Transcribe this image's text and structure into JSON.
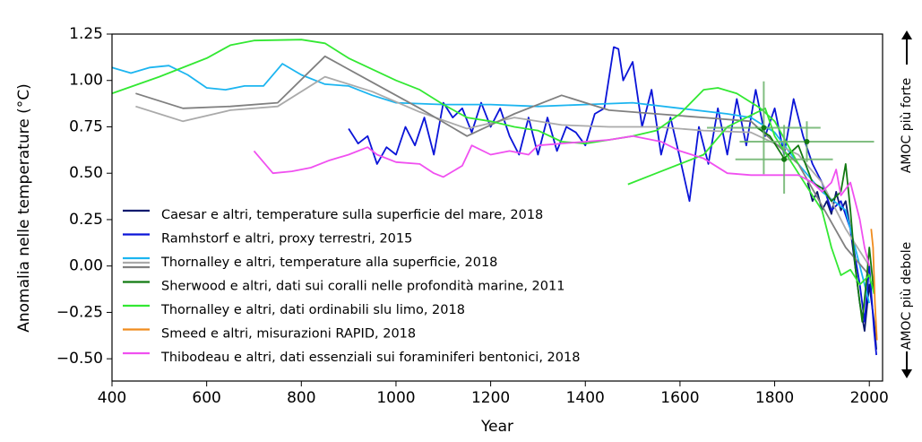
{
  "chart_data": {
    "type": "line",
    "xlabel": "Year",
    "ylabel": "Anomalia nelle temperature (°C)",
    "xlim": [
      400,
      2028
    ],
    "ylim": [
      -0.62,
      1.25
    ],
    "xticks": [
      400,
      600,
      800,
      1000,
      1200,
      1400,
      1600,
      1800,
      2000
    ],
    "yticks": [
      {
        "value": -0.5,
        "label": "−0.50"
      },
      {
        "value": -0.25,
        "label": "−0.25"
      },
      {
        "value": 0,
        "label": "0.00"
      },
      0.25,
      {
        "value": 0.5,
        "label": "0.50"
      },
      0.75,
      {
        "value": 1,
        "label": "1.00"
      },
      1.25
    ],
    "annotations": [
      "AMOC più forte",
      "AMOC più debole"
    ],
    "legend": "lower left",
    "series": [
      {
        "name": "Caesar e altri, temperature sulla superficie del mare, 2018",
        "color": "#0b1a6e",
        "x": [
          1870,
          1880,
          1890,
          1900,
          1910,
          1920,
          1930,
          1940,
          1950,
          1960,
          1970,
          1980,
          1990,
          2000,
          2010,
          2015
        ],
        "values": [
          0.45,
          0.35,
          0.4,
          0.3,
          0.35,
          0.28,
          0.4,
          0.3,
          0.35,
          0.2,
          0.0,
          -0.2,
          -0.35,
          -0.1,
          -0.3,
          -0.45
        ]
      },
      {
        "name": "Ramhstorf e altri, proxy terrestri, 2015",
        "color": "#0a14d8",
        "x": [
          900,
          920,
          940,
          960,
          980,
          1000,
          1020,
          1040,
          1060,
          1080,
          1100,
          1120,
          1140,
          1160,
          1180,
          1200,
          1220,
          1240,
          1260,
          1280,
          1300,
          1320,
          1340,
          1360,
          1380,
          1400,
          1420,
          1440,
          1460,
          1470,
          1480,
          1500,
          1520,
          1540,
          1560,
          1580,
          1600,
          1620,
          1640,
          1660,
          1680,
          1700,
          1720,
          1740,
          1760,
          1780,
          1800,
          1820,
          1840,
          1860,
          1880,
          1900,
          1920,
          1940,
          1960,
          1980,
          1990,
          2000,
          2010,
          2015
        ],
        "values": [
          0.74,
          0.66,
          0.7,
          0.55,
          0.64,
          0.6,
          0.75,
          0.65,
          0.8,
          0.6,
          0.88,
          0.8,
          0.85,
          0.72,
          0.88,
          0.75,
          0.85,
          0.7,
          0.6,
          0.8,
          0.6,
          0.8,
          0.62,
          0.75,
          0.72,
          0.65,
          0.82,
          0.85,
          1.18,
          1.17,
          1.0,
          1.1,
          0.75,
          0.95,
          0.6,
          0.8,
          0.58,
          0.35,
          0.75,
          0.55,
          0.85,
          0.6,
          0.9,
          0.65,
          0.95,
          0.7,
          0.85,
          0.6,
          0.9,
          0.7,
          0.55,
          0.45,
          0.3,
          0.35,
          0.2,
          -0.1,
          -0.3,
          0.0,
          -0.35,
          -0.48
        ]
      },
      {
        "name": "Thornalley e altri, temperature alla superficie, 2018",
        "color": "#1cb5f0",
        "x": [
          400,
          440,
          480,
          520,
          560,
          600,
          640,
          680,
          720,
          760,
          800,
          850,
          900,
          950,
          1000,
          1100,
          1200,
          1300,
          1400,
          1500,
          1600,
          1700,
          1750,
          1800,
          1850,
          1900,
          1950,
          2000
        ],
        "values": [
          1.07,
          1.04,
          1.07,
          1.08,
          1.03,
          0.96,
          0.95,
          0.97,
          0.97,
          1.09,
          1.03,
          0.98,
          0.97,
          0.92,
          0.88,
          0.87,
          0.87,
          0.86,
          0.87,
          0.88,
          0.85,
          0.82,
          0.8,
          0.72,
          0.55,
          0.4,
          0.3,
          -0.2
        ]
      },
      {
        "color": "#aaaaaa",
        "x": [
          450,
          550,
          650,
          750,
          850,
          950,
          1050,
          1150,
          1250,
          1350,
          1450,
          1550,
          1650,
          1750,
          1850,
          1900,
          1950,
          2000
        ],
        "values": [
          0.86,
          0.78,
          0.84,
          0.86,
          1.02,
          0.94,
          0.83,
          0.74,
          0.8,
          0.76,
          0.75,
          0.75,
          0.73,
          0.72,
          0.6,
          0.45,
          0.2,
          0.0
        ]
      },
      {
        "color": "#808080",
        "x": [
          450,
          550,
          650,
          750,
          850,
          950,
          1050,
          1150,
          1250,
          1350,
          1450,
          1550,
          1650,
          1750,
          1850,
          1950,
          2000
        ],
        "values": [
          0.93,
          0.85,
          0.86,
          0.88,
          1.13,
          0.99,
          0.85,
          0.7,
          0.82,
          0.92,
          0.84,
          0.82,
          0.8,
          0.78,
          0.55,
          0.1,
          -0.05
        ]
      },
      {
        "name": "Sherwood e altri, dati sui coralli nelle profondità marine, 2011",
        "color": "#127a12",
        "x": [
          1760,
          1790,
          1820,
          1850,
          1880,
          1900,
          1920,
          1940,
          1950,
          1960,
          1970,
          1985,
          1995,
          2000,
          2010
        ],
        "values": [
          0.75,
          0.7,
          0.58,
          0.65,
          0.45,
          0.42,
          0.35,
          0.4,
          0.55,
          0.3,
          0.0,
          -0.3,
          -0.05,
          0.1,
          -0.15
        ]
      },
      {
        "name": "Thornalley e altri, dati ordinabili slu limo, 2018",
        "color": "#33e833",
        "x": [
          400,
          500,
          600,
          650,
          700,
          800,
          850,
          900,
          1000,
          1050,
          1100,
          1150,
          1200,
          1250,
          1300,
          1350,
          1400,
          1450,
          1500,
          1550,
          1600,
          1650,
          1680,
          1720,
          1770,
          1800,
          1850,
          1860,
          1490,
          1550,
          1600,
          1650,
          1700,
          1780,
          1800,
          1850,
          1900,
          1920,
          1940,
          1960,
          1980,
          2000,
          2010
        ],
        "values": [
          0.93,
          1.02,
          1.12,
          1.19,
          1.215,
          1.22,
          1.2,
          1.12,
          1.0,
          0.95,
          0.87,
          0.8,
          0.78,
          0.75,
          0.73,
          0.67,
          0.66,
          0.68,
          0.7,
          0.73,
          0.82,
          0.95,
          0.96,
          0.93,
          0.85,
          0.78,
          0.55,
          null,
          0.44,
          0.5,
          0.55,
          0.6,
          0.75,
          0.85,
          0.7,
          0.5,
          0.3,
          0.1,
          -0.05,
          -0.02,
          -0.1,
          -0.05,
          -0.15
        ]
      },
      {
        "name": "Smeed e altri, misurazioni RAPID, 2018",
        "color": "#f08c1e",
        "x": [
          2004,
          2008,
          2012,
          2016
        ],
        "values": [
          0.2,
          0.1,
          -0.2,
          -0.4
        ]
      },
      {
        "name": "Thibodeau e altri, dati essenziali sui foraminiferi bentonici, 2018",
        "color": "#f050f0",
        "x": [
          700,
          740,
          780,
          820,
          860,
          900,
          940,
          960,
          1000,
          1050,
          1080,
          1100,
          1140,
          1160,
          1200,
          1240,
          1280,
          1300,
          1350,
          1400,
          1450,
          1500,
          1560,
          1600,
          1650,
          1700,
          1750,
          1800,
          1850,
          1880,
          1900,
          1920,
          1930,
          1940,
          1960,
          1980,
          1990,
          2000
        ],
        "values": [
          0.62,
          0.5,
          0.51,
          0.53,
          0.57,
          0.6,
          0.64,
          0.6,
          0.56,
          0.55,
          0.5,
          0.48,
          0.54,
          0.65,
          0.6,
          0.62,
          0.6,
          0.65,
          0.66,
          0.67,
          0.68,
          0.7,
          0.67,
          0.62,
          0.58,
          0.5,
          0.49,
          0.49,
          0.49,
          0.45,
          0.4,
          0.45,
          0.52,
          0.38,
          0.45,
          0.25,
          0.1,
          0.0
        ]
      }
    ],
    "crosses_color": "#6db36d",
    "crosses": [
      {
        "x": 1777,
        "y": 0.745,
        "xerr": 120,
        "yerr": 0.25
      },
      {
        "x": 1820,
        "y": 0.575,
        "xerr": 103,
        "yerr": 0.185
      },
      {
        "x": 1868,
        "y": 0.67,
        "xerr": 142,
        "yerr": 0.11
      }
    ]
  }
}
